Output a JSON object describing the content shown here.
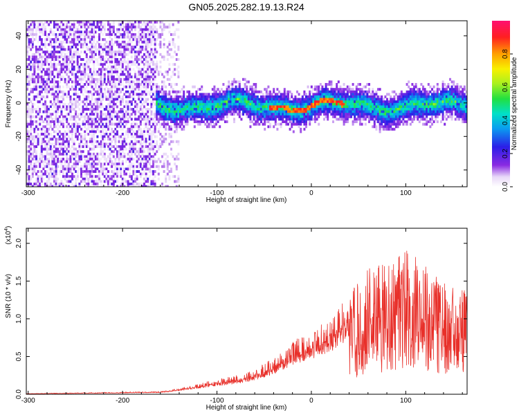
{
  "title": "GN05.2025.282.19.13.R24",
  "chart_data": [
    {
      "type": "heatmap",
      "xlabel": "Height of straight line (km)",
      "ylabel": "Frequency (Hz)",
      "xlim": [
        -302,
        165
      ],
      "ylim": [
        -50,
        49
      ],
      "xticks": [
        -300,
        -200,
        -100,
        0,
        100
      ],
      "yticks": [
        -40,
        -20,
        0,
        20,
        40
      ],
      "xtick_labels": [
        "-300",
        "-200",
        "-100",
        "0",
        "100"
      ],
      "ytick_labels": [
        "-40",
        "-20",
        "0",
        "20",
        "40"
      ],
      "colorbar": {
        "label": "Normalized spectral amplitude",
        "range": [
          0,
          1
        ],
        "ticks": [
          0.0,
          0.2,
          0.4,
          0.6,
          0.8
        ],
        "tick_labels": [
          "0.0",
          "0.2",
          "0.4",
          "0.6",
          "0.8"
        ]
      },
      "regions": [
        {
          "name": "diffuse noise",
          "x_range": [
            -302,
            -160
          ],
          "freq_range": [
            -50,
            49
          ],
          "amplitude": 0.12
        },
        {
          "name": "signal band",
          "x_range": [
            -160,
            165
          ],
          "center_freq": 0,
          "half_width_freq": [
            6,
            12
          ],
          "amplitude": 0.45
        },
        {
          "name": "peak",
          "x_range": [
            -40,
            30
          ],
          "center_freq": -1,
          "amplitude": 0.85
        }
      ]
    },
    {
      "type": "line",
      "xlabel": "Height of straight line (km)",
      "ylabel": "SNR (10 * v/v)",
      "scale_label": "(x10",
      "scale_exponent": "4",
      "xlim": [
        -302,
        165
      ],
      "ylim": [
        0,
        2.2
      ],
      "xticks": [
        -300,
        -200,
        -100,
        0,
        100
      ],
      "yticks": [
        0.0,
        0.5,
        1.0,
        1.5,
        2.0
      ],
      "xtick_labels": [
        "-300",
        "-200",
        "-100",
        "0",
        "100"
      ],
      "ytick_labels": [
        "0.0",
        "0.5",
        "1.0",
        "1.5",
        "2.0"
      ],
      "series": [
        {
          "name": "SNR",
          "color": "#e8302a",
          "envelope_x": [
            -302,
            -250,
            -200,
            -160,
            -140,
            -120,
            -100,
            -80,
            -60,
            -40,
            -20,
            0,
            20,
            40,
            60,
            80,
            100,
            120,
            140,
            165
          ],
          "envelope_y": [
            0.01,
            0.02,
            0.03,
            0.04,
            0.08,
            0.14,
            0.2,
            0.25,
            0.33,
            0.48,
            0.7,
            0.85,
            1.0,
            1.35,
            1.65,
            1.85,
            1.95,
            1.7,
            1.5,
            1.4
          ]
        }
      ]
    }
  ],
  "colors": {
    "signal": "#e8302a",
    "axis": "#000000",
    "background": "#ffffff"
  }
}
